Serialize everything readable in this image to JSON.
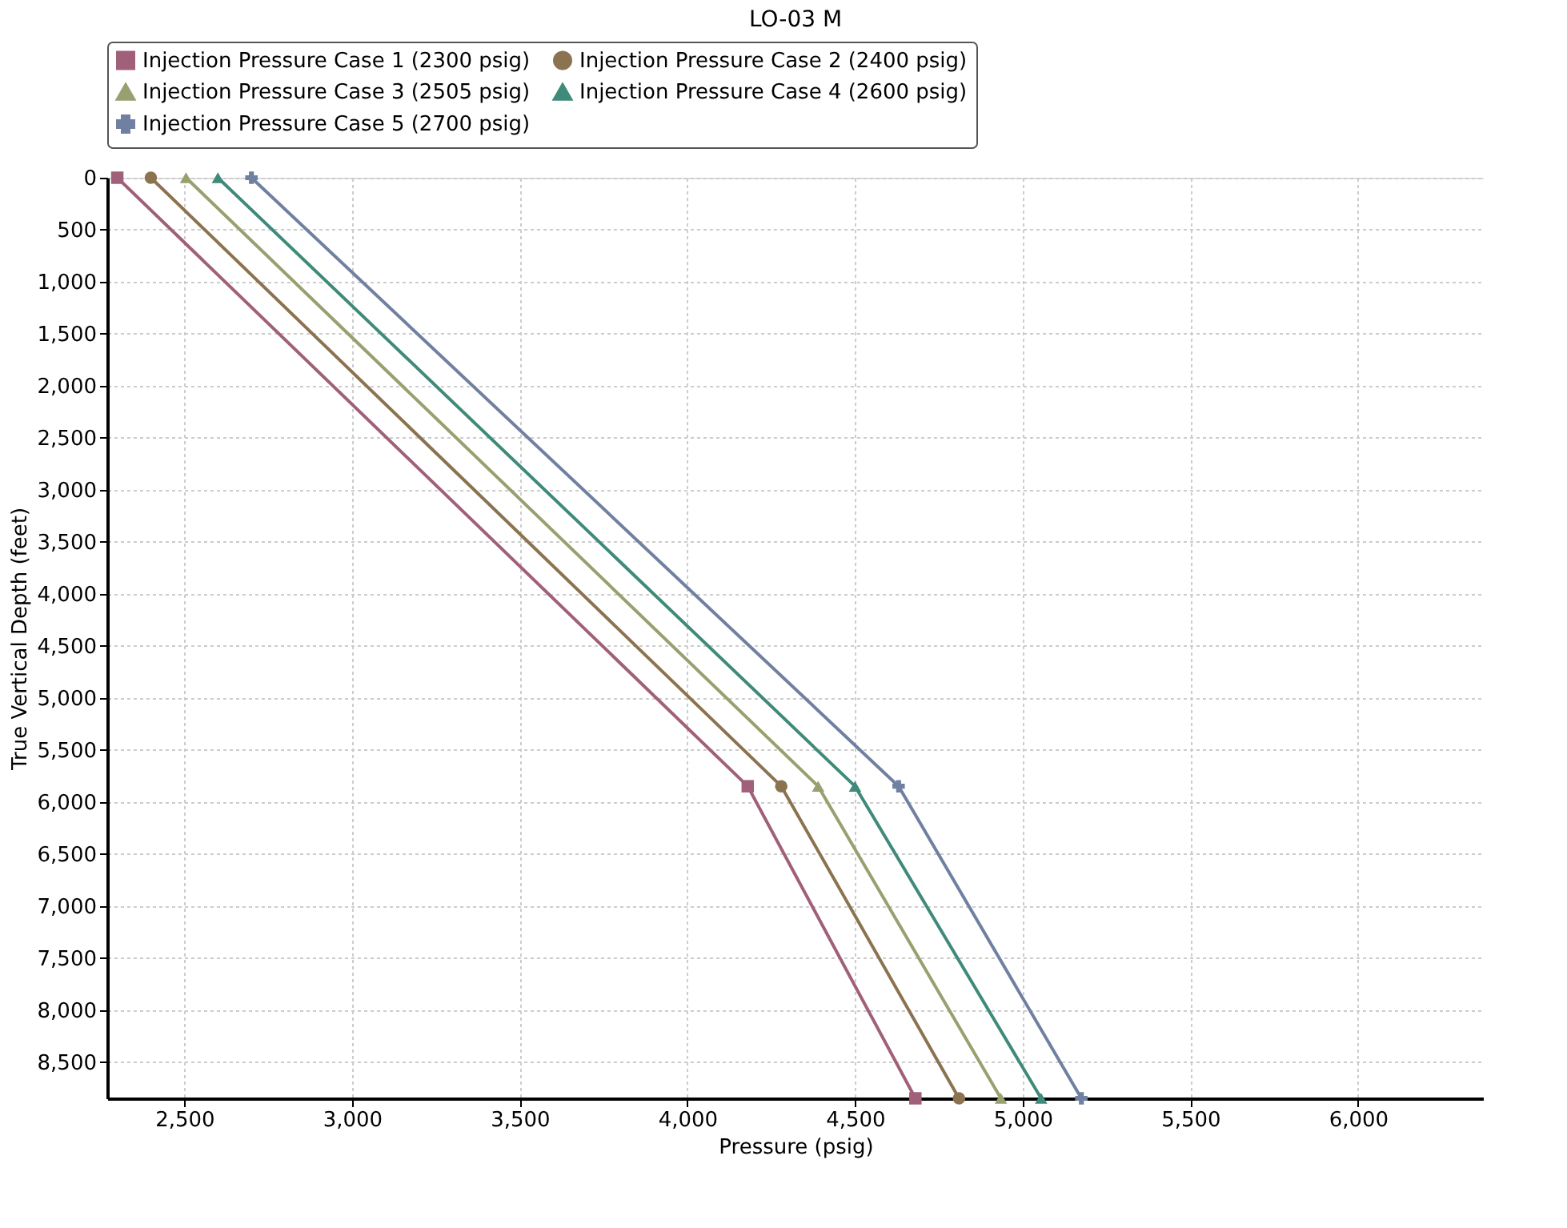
{
  "chart_data": {
    "type": "line",
    "title": "LO-03 M",
    "xlabel": "Pressure  (psig)",
    "ylabel": "True Vertical Depth  (feet)",
    "xlim": [
      2270,
      6375
    ],
    "ylim": [
      8850,
      0
    ],
    "xticks": [
      {
        "value": 2500,
        "label": "2,500"
      },
      {
        "value": 3000,
        "label": "3,000"
      },
      {
        "value": 3500,
        "label": "3,500"
      },
      {
        "value": 4000,
        "label": "4,000"
      },
      {
        "value": 4500,
        "label": "4,500"
      },
      {
        "value": 5000,
        "label": "5,000"
      },
      {
        "value": 5500,
        "label": "5,500"
      },
      {
        "value": 6000,
        "label": "6,000"
      }
    ],
    "yticks": [
      0,
      500,
      {
        "value": 1000,
        "label": "1,000"
      },
      {
        "value": 1500,
        "label": "1,500"
      },
      {
        "value": 2000,
        "label": "2,000"
      },
      {
        "value": 2500,
        "label": "2,500"
      },
      {
        "value": 3000,
        "label": "3,000"
      },
      {
        "value": 3500,
        "label": "3,500"
      },
      {
        "value": 4000,
        "label": "4,000"
      },
      {
        "value": 4500,
        "label": "4,500"
      },
      {
        "value": 5000,
        "label": "5,000"
      },
      {
        "value": 5500,
        "label": "5,500"
      },
      {
        "value": 6000,
        "label": "6,000"
      },
      {
        "value": 6500,
        "label": "6,500"
      },
      {
        "value": 7000,
        "label": "7,000"
      },
      {
        "value": 7500,
        "label": "7,500"
      },
      {
        "value": 8000,
        "label": "8,000"
      },
      {
        "value": 8500,
        "label": "8,500"
      }
    ],
    "grid": true,
    "legend": "top",
    "line_style": "solid",
    "series": [
      {
        "name": "Injection Pressure Case 1 (2300 psig)",
        "color": "#a0607a",
        "marker": "square",
        "x": [
          2300,
          4180,
          4680
        ],
        "values": [
          0,
          5850,
          8850
        ]
      },
      {
        "name": "Injection Pressure Case 2 (2400 psig)",
        "color": "#8b7350",
        "marker": "circle",
        "x": [
          2400,
          4280,
          4810
        ],
        "values": [
          0,
          5850,
          8850
        ]
      },
      {
        "name": "Injection Pressure Case 3 (2505 psig)",
        "color": "#98a070",
        "marker": "triangle",
        "x": [
          2505,
          4390,
          4935
        ],
        "values": [
          0,
          5850,
          8850
        ]
      },
      {
        "name": "Injection Pressure Case 4 (2600 psig)",
        "color": "#3f8a7a",
        "marker": "triangle",
        "x": [
          2600,
          4500,
          5055
        ],
        "values": [
          0,
          5850,
          8850
        ]
      },
      {
        "name": "Injection Pressure Case 5 (2700 psig)",
        "color": "#7080a0",
        "marker": "cross",
        "x": [
          2700,
          4630,
          5175
        ],
        "values": [
          0,
          5850,
          8850
        ]
      }
    ]
  }
}
